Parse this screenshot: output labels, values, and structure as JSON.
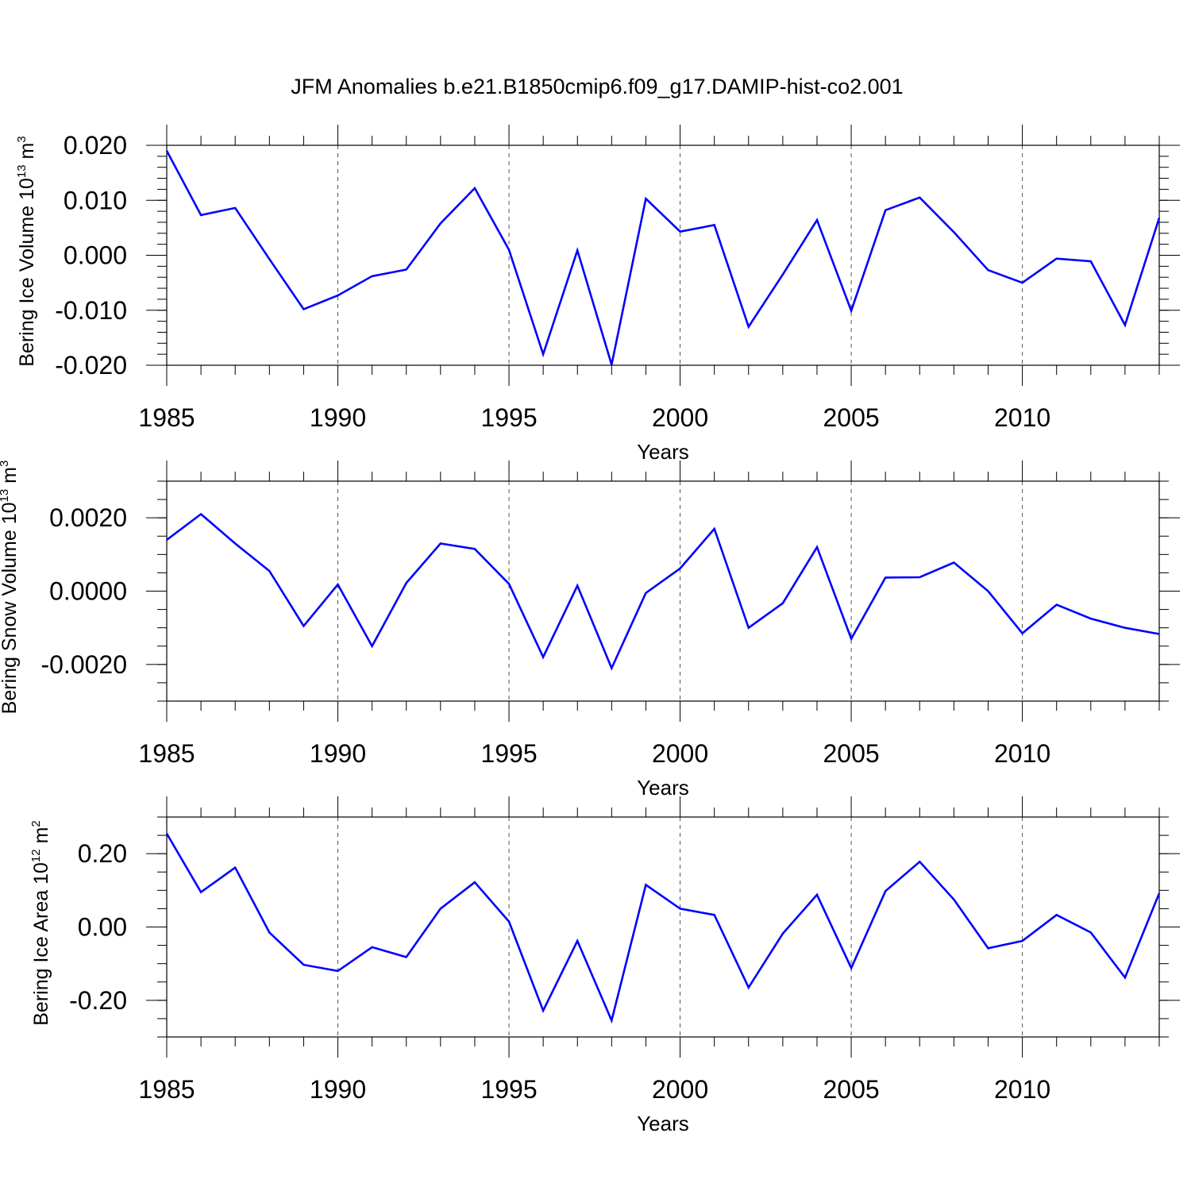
{
  "title": "JFM Anomalies b.e21.B1850cmip6.f09_g17.DAMIP-hist-co2.001",
  "colors": {
    "line": "#0000ff",
    "axis": "#000000",
    "grid": "#000000"
  },
  "chart_data": [
    {
      "type": "line",
      "ylabel_main": "Bering Ice Volume 10",
      "ylabel_exp": "13",
      "ylabel_unit": " m",
      "ylabel_unit_exp": "3",
      "xlabel": "Years",
      "xlim": [
        1985,
        2014
      ],
      "xticks": [
        1985,
        1990,
        1995,
        2000,
        2005,
        2010
      ],
      "xtick_labels": [
        "1985",
        "1990",
        "1995",
        "2000",
        "2005",
        "2010"
      ],
      "ylim": [
        -0.02,
        0.02
      ],
      "yticks": [
        0.02,
        0.01,
        0.0,
        -0.01,
        -0.02
      ],
      "ytick_labels": [
        "0.020",
        "0.010",
        "0.000",
        "-0.010",
        "-0.020"
      ],
      "yminor_step": 0.002,
      "x": [
        1985,
        1986,
        1987,
        1988,
        1989,
        1990,
        1991,
        1992,
        1993,
        1994,
        1995,
        1996,
        1997,
        1998,
        1999,
        2000,
        2001,
        2002,
        2003,
        2004,
        2005,
        2006,
        2007,
        2008,
        2009,
        2010,
        2011,
        2012,
        2013,
        2014
      ],
      "values": [
        0.019,
        0.0073,
        0.0086,
        -0.0007,
        -0.0098,
        -0.0073,
        -0.0038,
        -0.0026,
        0.0058,
        0.0122,
        0.001,
        -0.018,
        0.0009,
        -0.0199,
        0.0103,
        0.0043,
        0.0055,
        -0.013,
        -0.0035,
        0.0064,
        -0.0101,
        0.0082,
        0.0105,
        0.0042,
        -0.0027,
        -0.005,
        -0.0006,
        -0.0011,
        -0.0127,
        0.0068
      ]
    },
    {
      "type": "line",
      "ylabel_main": "Bering Snow Volume 10",
      "ylabel_exp": "13",
      "ylabel_unit": " m",
      "ylabel_unit_exp": "3",
      "xlabel": "Years",
      "xlim": [
        1985,
        2014
      ],
      "xticks": [
        1985,
        1990,
        1995,
        2000,
        2005,
        2010
      ],
      "xtick_labels": [
        "1985",
        "1990",
        "1995",
        "2000",
        "2005",
        "2010"
      ],
      "ylim": [
        -0.003,
        0.003
      ],
      "yticks": [
        0.002,
        0.0,
        -0.002
      ],
      "ytick_labels": [
        "0.0020",
        "0.0000",
        "-0.0020"
      ],
      "yminor_step": 0.0005,
      "x": [
        1985,
        1986,
        1987,
        1988,
        1989,
        1990,
        1991,
        1992,
        1993,
        1994,
        1995,
        1996,
        1997,
        1998,
        1999,
        2000,
        2001,
        2002,
        2003,
        2004,
        2005,
        2006,
        2007,
        2008,
        2009,
        2010,
        2011,
        2012,
        2013,
        2014
      ],
      "values": [
        0.0014,
        0.0021,
        0.0013,
        0.00055,
        -0.00095,
        0.00018,
        -0.0015,
        0.00022,
        0.0013,
        0.00115,
        0.0002,
        -0.0018,
        0.00015,
        -0.0021,
        -5e-05,
        0.00062,
        0.0017,
        -0.001,
        -0.00033,
        0.0012,
        -0.0013,
        0.00037,
        0.00038,
        0.00078,
        0.0,
        -0.00115,
        -0.00037,
        -0.00075,
        -0.001,
        -0.00117
      ]
    },
    {
      "type": "line",
      "ylabel_main": "Bering Ice Area 10",
      "ylabel_exp": "12",
      "ylabel_unit": " m",
      "ylabel_unit_exp": "2",
      "xlabel": "Years",
      "xlim": [
        1985,
        2014
      ],
      "xticks": [
        1985,
        1990,
        1995,
        2000,
        2005,
        2010
      ],
      "xtick_labels": [
        "1985",
        "1990",
        "1995",
        "2000",
        "2005",
        "2010"
      ],
      "ylim": [
        -0.3,
        0.3
      ],
      "yticks": [
        0.2,
        0.0,
        -0.2
      ],
      "ytick_labels": [
        "0.20",
        "0.00",
        "-0.20"
      ],
      "yminor_step": 0.05,
      "x": [
        1985,
        1986,
        1987,
        1988,
        1989,
        1990,
        1991,
        1992,
        1993,
        1994,
        1995,
        1996,
        1997,
        1998,
        1999,
        2000,
        2001,
        2002,
        2003,
        2004,
        2005,
        2006,
        2007,
        2008,
        2009,
        2010,
        2011,
        2012,
        2013,
        2014
      ],
      "values": [
        0.255,
        0.095,
        0.162,
        -0.015,
        -0.103,
        -0.12,
        -0.055,
        -0.082,
        0.05,
        0.122,
        0.015,
        -0.228,
        -0.038,
        -0.255,
        0.115,
        0.05,
        0.033,
        -0.165,
        -0.018,
        0.088,
        -0.112,
        0.098,
        0.178,
        0.075,
        -0.058,
        -0.038,
        0.033,
        -0.015,
        -0.138,
        0.092
      ]
    }
  ]
}
